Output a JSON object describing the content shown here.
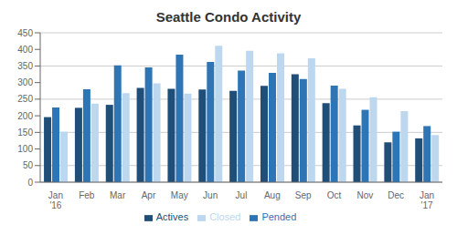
{
  "chart_data": {
    "type": "bar",
    "title": "Seattle Condo Activity",
    "categories": [
      "Jan\n'16",
      "Feb",
      "Mar",
      "Apr",
      "May",
      "Jun",
      "Jul",
      "Aug",
      "Sep",
      "Oct",
      "Nov",
      "Dec",
      "Jan\n'17"
    ],
    "series": [
      {
        "name": "Actives",
        "color": "#1F4E79",
        "values": [
          196,
          224,
          233,
          284,
          281,
          279,
          275,
          290,
          325,
          238,
          171,
          120,
          132
        ]
      },
      {
        "name": "Pended",
        "color": "#2E75B6",
        "values": [
          225,
          280,
          352,
          346,
          384,
          362,
          336,
          329,
          311,
          291,
          218,
          152,
          169
        ]
      },
      {
        "name": "Closed",
        "color": "#BDD7EE",
        "values": [
          152,
          237,
          268,
          298,
          267,
          411,
          396,
          388,
          373,
          281,
          256,
          214,
          142
        ]
      }
    ],
    "ylim": [
      0,
      450
    ],
    "yticks": [
      0,
      50,
      100,
      150,
      200,
      250,
      300,
      350,
      400,
      450
    ],
    "grid": true
  }
}
